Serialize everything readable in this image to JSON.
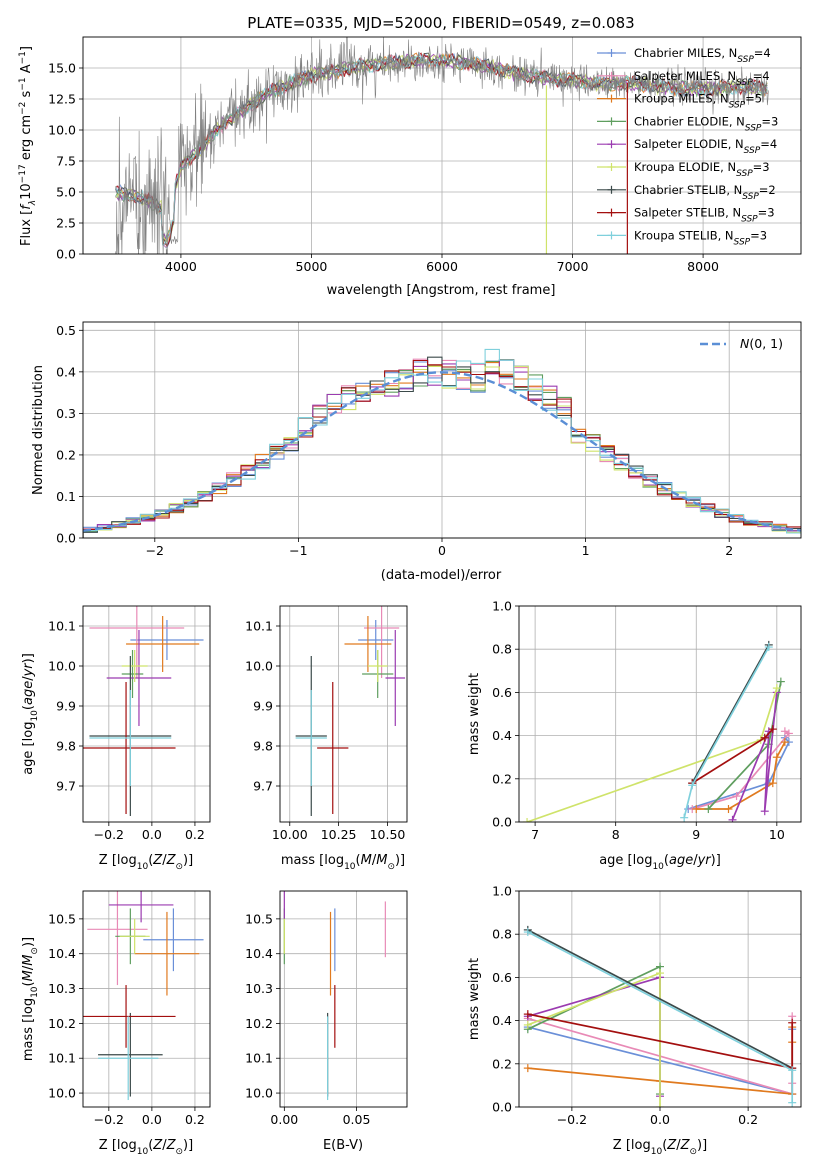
{
  "figure": {
    "title": "PLATE=0335, MJD=52000, FIBERID=0549, z=0.083"
  },
  "colors": {
    "Chabrier MILES": "#6a8fd8",
    "Salpeter MILES": "#e88ab6",
    "Kroupa MILES": "#e07a1f",
    "Chabrier ELODIE": "#5f9e5f",
    "Salpeter ELODIE": "#9b3bb0",
    "Kroupa ELODIE": "#cfe36a",
    "Chabrier STELIB": "#3b4a4a",
    "Salpeter STELIB": "#a30f0f",
    "Kroupa STELIB": "#7fd0dc",
    "gaussian": "#5b8fd6",
    "data_spectrum": "#808080"
  },
  "chart_data": [
    {
      "id": "spectrum",
      "type": "line",
      "title": "PLATE=0335, MJD=52000, FIBERID=0549, z=0.083",
      "xlabel": "wavelength [Angstrom, rest frame]",
      "ylabel": "Flux [f_λ 10^-17 erg cm^-2 s^-1 A^-1]",
      "xlim": [
        3250,
        8750
      ],
      "ylim": [
        0,
        17.5
      ],
      "xticks": [
        4000,
        5000,
        6000,
        7000,
        8000
      ],
      "yticks": [
        0.0,
        2.5,
        5.0,
        7.5,
        10.0,
        12.5,
        15.0
      ],
      "legend_position": "right",
      "continuum": {
        "x": [
          3500,
          3700,
          3900,
          4000,
          4100,
          4200,
          4300,
          4500,
          4700,
          4900,
          5000,
          5200,
          5400,
          5600,
          5800,
          6000,
          6200,
          6400,
          6600,
          6800,
          7000,
          7200,
          7400,
          7600,
          7800,
          8000,
          8300,
          8500
        ],
        "y": [
          5.0,
          4.5,
          3.5,
          7.0,
          8.0,
          9.0,
          10.3,
          11.8,
          13.2,
          14.0,
          14.4,
          14.8,
          15.2,
          15.4,
          15.6,
          15.6,
          15.4,
          15.0,
          14.5,
          14.2,
          14.0,
          13.7,
          13.8,
          13.6,
          13.4,
          13.3,
          13.5,
          13.4
        ]
      },
      "series": [
        {
          "name": "Chabrier MILES, N_SSP=4",
          "n_ssp": 4
        },
        {
          "name": "Salpeter MILES, N_SSP=4",
          "n_ssp": 4
        },
        {
          "name": "Kroupa MILES, N_SSP=5",
          "n_ssp": 5
        },
        {
          "name": "Chabrier ELODIE, N_SSP=3",
          "n_ssp": 3
        },
        {
          "name": "Salpeter ELODIE, N_SSP=4",
          "n_ssp": 4
        },
        {
          "name": "Kroupa ELODIE, N_SSP=3",
          "n_ssp": 3
        },
        {
          "name": "Chabrier STELIB, N_SSP=2",
          "n_ssp": 2
        },
        {
          "name": "Salpeter STELIB, N_SSP=3",
          "n_ssp": 3
        },
        {
          "name": "Kroupa STELIB, N_SSP=3",
          "n_ssp": 3
        }
      ]
    },
    {
      "id": "residuals",
      "type": "histogram",
      "xlabel": "(data-model)/error",
      "ylabel": "Normed distribution",
      "xlim": [
        -2.5,
        2.5
      ],
      "ylim": [
        0,
        0.52
      ],
      "xticks": [
        -2,
        -1,
        0,
        1,
        2
      ],
      "yticks": [
        0.0,
        0.1,
        0.2,
        0.3,
        0.4,
        0.5
      ],
      "bins": [
        -2.5,
        2.5,
        50
      ],
      "reference": {
        "name": "N(0,1)",
        "style": "dashed"
      },
      "legend_position": "top-right"
    },
    {
      "id": "age_vs_z",
      "type": "scatter",
      "xlabel": "Z [log10(Z/Z⊙)]",
      "ylabel": "age  [log10(age/yr)]",
      "xlim": [
        -0.32,
        0.27
      ],
      "ylim": [
        9.61,
        10.15
      ],
      "xticks": [
        -0.2,
        0.0,
        0.2
      ],
      "yticks": [
        9.7,
        9.8,
        9.9,
        10.0,
        10.1
      ],
      "points": [
        {
          "model": "Chabrier MILES",
          "x": 0.07,
          "xerr": 0.17,
          "y": 10.065,
          "yerr": 0.05
        },
        {
          "model": "Salpeter MILES",
          "x": -0.07,
          "xerr": 0.22,
          "y": 10.095,
          "yerr": 0.125
        },
        {
          "model": "Kroupa MILES",
          "x": 0.05,
          "xerr": 0.17,
          "y": 10.055,
          "yerr": 0.07
        },
        {
          "model": "Chabrier ELODIE",
          "x": -0.09,
          "xerr": 0.05,
          "y": 9.98,
          "yerr": 0.06
        },
        {
          "model": "Salpeter ELODIE",
          "x": -0.06,
          "xerr": 0.15,
          "y": 9.97,
          "yerr": 0.12
        },
        {
          "model": "Kroupa ELODIE",
          "x": -0.08,
          "xerr": 0.06,
          "y": 10.0,
          "yerr": 0.04
        },
        {
          "model": "Chabrier STELIB",
          "x": -0.1,
          "xerr": 0.19,
          "y": 9.825,
          "yerr": 0.2
        },
        {
          "model": "Salpeter STELIB",
          "x": -0.12,
          "xerr": 0.23,
          "y": 9.795,
          "yerr": 0.165
        },
        {
          "model": "Kroupa STELIB",
          "x": -0.1,
          "xerr": 0.19,
          "y": 9.82,
          "yerr": 0.12
        }
      ]
    },
    {
      "id": "age_vs_mass",
      "type": "scatter",
      "xlabel": "mass [log10(M/M⊙)]",
      "ylabel": "",
      "xlim": [
        9.95,
        10.6
      ],
      "ylim": [
        9.61,
        10.15
      ],
      "xticks": [
        10.0,
        10.25,
        10.5
      ],
      "yticks": [
        9.7,
        9.8,
        9.9,
        10.0,
        10.1
      ],
      "points": [
        {
          "model": "Chabrier MILES",
          "x": 10.44,
          "xerr": 0.09,
          "y": 10.065,
          "yerr": 0.05
        },
        {
          "model": "Salpeter MILES",
          "x": 10.47,
          "xerr": 0.09,
          "y": 10.095,
          "yerr": 0.125
        },
        {
          "model": "Kroupa MILES",
          "x": 10.4,
          "xerr": 0.12,
          "y": 10.055,
          "yerr": 0.07
        },
        {
          "model": "Chabrier ELODIE",
          "x": 10.45,
          "xerr": 0.08,
          "y": 9.98,
          "yerr": 0.06
        },
        {
          "model": "Salpeter ELODIE",
          "x": 10.54,
          "xerr": 0.05,
          "y": 9.97,
          "yerr": 0.12
        },
        {
          "model": "Kroupa ELODIE",
          "x": 10.45,
          "xerr": 0.05,
          "y": 10.0,
          "yerr": 0.04
        },
        {
          "model": "Chabrier STELIB",
          "x": 10.11,
          "xerr": 0.08,
          "y": 9.825,
          "yerr": 0.2
        },
        {
          "model": "Salpeter STELIB",
          "x": 10.22,
          "xerr": 0.08,
          "y": 9.795,
          "yerr": 0.165
        },
        {
          "model": "Kroupa STELIB",
          "x": 10.11,
          "xerr": 0.08,
          "y": 9.82,
          "yerr": 0.12
        }
      ]
    },
    {
      "id": "weight_vs_age",
      "type": "line",
      "xlabel": "age  [log10(age/yr)]",
      "ylabel": "mass weight",
      "xlim": [
        6.8,
        10.3
      ],
      "ylim": [
        0,
        1.0
      ],
      "xticks": [
        7,
        8,
        9,
        10
      ],
      "yticks": [
        0.0,
        0.2,
        0.4,
        0.6,
        0.8,
        1.0
      ],
      "series": [
        {
          "model": "Chabrier MILES",
          "x": [
            8.9,
            9.9,
            10.15,
            10.1
          ],
          "y": [
            0.06,
            0.18,
            0.37,
            0.39
          ]
        },
        {
          "model": "Salpeter MILES",
          "x": [
            8.95,
            9.5,
            10.15,
            10.1
          ],
          "y": [
            0.06,
            0.12,
            0.41,
            0.42
          ]
        },
        {
          "model": "Kroupa MILES",
          "x": [
            9.0,
            9.4,
            9.95,
            10.0,
            10.1
          ],
          "y": [
            0.06,
            0.06,
            0.18,
            0.3,
            0.37
          ]
        },
        {
          "model": "Chabrier ELODIE",
          "x": [
            9.15,
            9.9,
            10.05
          ],
          "y": [
            0.06,
            0.36,
            0.65
          ]
        },
        {
          "model": "Salpeter ELODIE",
          "x": [
            9.45,
            9.9,
            9.85,
            10.0
          ],
          "y": [
            0.01,
            0.42,
            0.05,
            0.6
          ]
        },
        {
          "model": "Kroupa ELODIE",
          "x": [
            6.9,
            9.8,
            10.0
          ],
          "y": [
            0.0,
            0.38,
            0.62
          ]
        },
        {
          "model": "Chabrier STELIB",
          "x": [
            8.95,
            9.9
          ],
          "y": [
            0.18,
            0.82
          ]
        },
        {
          "model": "Salpeter STELIB",
          "x": [
            8.95,
            9.85,
            9.95
          ],
          "y": [
            0.18,
            0.39,
            0.43
          ]
        },
        {
          "model": "Kroupa STELIB",
          "x": [
            8.85,
            8.95,
            9.9
          ],
          "y": [
            0.02,
            0.17,
            0.81
          ]
        }
      ]
    },
    {
      "id": "mass_vs_z",
      "type": "scatter",
      "xlabel": "Z [log10(Z/Z⊙)]",
      "ylabel": "mass [log10(M/M⊙)]",
      "xlim": [
        -0.32,
        0.27
      ],
      "ylim": [
        9.96,
        10.58
      ],
      "xticks": [
        -0.2,
        0.0,
        0.2
      ],
      "yticks": [
        10.0,
        10.1,
        10.2,
        10.3,
        10.4,
        10.5
      ],
      "points": [
        {
          "model": "Chabrier MILES",
          "x": 0.1,
          "xerr": 0.14,
          "y": 10.44,
          "yerr": 0.09
        },
        {
          "model": "Salpeter MILES",
          "x": -0.16,
          "xerr": 0.14,
          "y": 10.47,
          "yerr": 0.16
        },
        {
          "model": "Kroupa MILES",
          "x": 0.07,
          "xerr": 0.15,
          "y": 10.4,
          "yerr": 0.12
        },
        {
          "model": "Chabrier ELODIE",
          "x": -0.1,
          "xerr": 0.07,
          "y": 10.45,
          "yerr": 0.08
        },
        {
          "model": "Salpeter ELODIE",
          "x": -0.05,
          "xerr": 0.15,
          "y": 10.54,
          "yerr": 0.05
        },
        {
          "model": "Kroupa ELODIE",
          "x": -0.08,
          "xerr": 0.07,
          "y": 10.45,
          "yerr": 0.05
        },
        {
          "model": "Chabrier STELIB",
          "x": -0.1,
          "xerr": 0.15,
          "y": 10.11,
          "yerr": 0.12
        },
        {
          "model": "Salpeter STELIB",
          "x": -0.12,
          "xerr": 0.23,
          "y": 10.22,
          "yerr": 0.09
        },
        {
          "model": "Kroupa STELIB",
          "x": -0.11,
          "xerr": 0.14,
          "y": 10.1,
          "yerr": 0.12
        }
      ]
    },
    {
      "id": "mass_vs_ebv",
      "type": "scatter",
      "xlabel": "E(B-V)",
      "ylabel": "",
      "xlim": [
        -0.003,
        0.085
      ],
      "ylim": [
        9.96,
        10.58
      ],
      "xticks": [
        0.0,
        0.05
      ],
      "yticks": [
        10.0,
        10.1,
        10.2,
        10.3,
        10.4,
        10.5
      ],
      "points": [
        {
          "model": "Chabrier MILES",
          "x": 0.035,
          "xerr": 0.0,
          "y": 10.44,
          "yerr": 0.09
        },
        {
          "model": "Salpeter MILES",
          "x": 0.07,
          "xerr": 0.0,
          "y": 10.47,
          "yerr": 0.08
        },
        {
          "model": "Kroupa MILES",
          "x": 0.032,
          "xerr": 0.0,
          "y": 10.4,
          "yerr": 0.12
        },
        {
          "model": "Chabrier ELODIE",
          "x": 0.0,
          "xerr": 0.0,
          "y": 10.45,
          "yerr": 0.08
        },
        {
          "model": "Salpeter ELODIE",
          "x": 0.0,
          "xerr": 0.0,
          "y": 10.54,
          "yerr": 0.04
        },
        {
          "model": "Kroupa ELODIE",
          "x": 0.0,
          "xerr": 0.0,
          "y": 10.45,
          "yerr": 0.05
        },
        {
          "model": "Chabrier STELIB",
          "x": 0.03,
          "xerr": 0.0,
          "y": 10.11,
          "yerr": 0.12
        },
        {
          "model": "Salpeter STELIB",
          "x": 0.035,
          "xerr": 0.0,
          "y": 10.22,
          "yerr": 0.09
        },
        {
          "model": "Kroupa STELIB",
          "x": 0.03,
          "xerr": 0.0,
          "y": 10.1,
          "yerr": 0.12
        }
      ]
    },
    {
      "id": "weight_vs_z",
      "type": "line",
      "xlabel": "Z [log10(Z/Z⊙)]",
      "ylabel": "mass weight",
      "xlim": [
        -0.32,
        0.32
      ],
      "ylim": [
        0,
        1.0
      ],
      "xticks": [
        -0.2,
        0.0,
        0.2
      ],
      "yticks": [
        0.0,
        0.2,
        0.4,
        0.6,
        0.8,
        1.0
      ],
      "series": [
        {
          "model": "Chabrier MILES",
          "x": [
            -0.3,
            0.3,
            0.3
          ],
          "y": [
            0.37,
            0.06,
            0.36
          ]
        },
        {
          "model": "Salpeter MILES",
          "x": [
            -0.3,
            0.3,
            0.3,
            0.3
          ],
          "y": [
            0.41,
            0.06,
            0.11,
            0.42
          ]
        },
        {
          "model": "Kroupa MILES",
          "x": [
            -0.3,
            0.0,
            0.3,
            0.3,
            0.3
          ],
          "y": [
            0.18,
            0.12,
            0.06,
            0.3,
            0.37
          ]
        },
        {
          "model": "Chabrier ELODIE",
          "x": [
            -0.3,
            0.0,
            0.0
          ],
          "y": [
            0.36,
            0.65,
            0.06
          ]
        },
        {
          "model": "Salpeter ELODIE",
          "x": [
            -0.3,
            0.0,
            0.0,
            0.0
          ],
          "y": [
            0.42,
            0.6,
            0.05,
            0.6
          ]
        },
        {
          "model": "Kroupa ELODIE",
          "x": [
            -0.3,
            0.0,
            0.0
          ],
          "y": [
            0.38,
            0.62,
            0.0
          ]
        },
        {
          "model": "Chabrier STELIB",
          "x": [
            -0.3,
            0.3
          ],
          "y": [
            0.82,
            0.18
          ]
        },
        {
          "model": "Salpeter STELIB",
          "x": [
            -0.3,
            0.3,
            0.3
          ],
          "y": [
            0.43,
            0.18,
            0.39
          ]
        },
        {
          "model": "Kroupa STELIB",
          "x": [
            -0.3,
            0.3,
            0.3
          ],
          "y": [
            0.81,
            0.17,
            0.02
          ]
        }
      ]
    }
  ]
}
